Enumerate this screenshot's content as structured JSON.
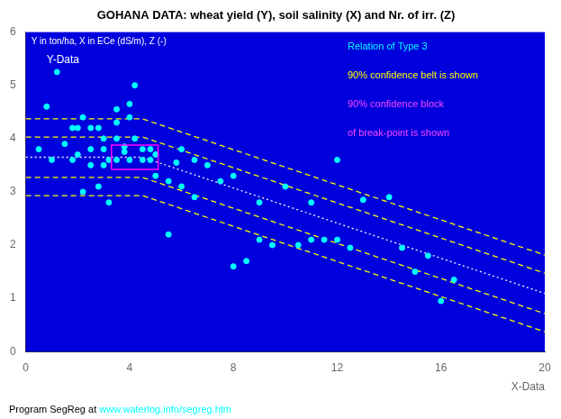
{
  "chart_data": {
    "type": "scatter",
    "title": "GOHANA DATA: wheat yield (Y), soil salinity (X) and Nr. of irr. (Z)",
    "subtitle": "Y in ton/ha, X in ECe (dS/m), Z (-)",
    "xlabel": "X-Data",
    "ylabel": "Y-Data",
    "annotations": [
      {
        "text": "Relation of Type 3",
        "color": "cyan"
      },
      {
        "text": "90% confidence belt is shown",
        "color": "#FFFF00"
      },
      {
        "text": "90% confidence block",
        "color": "#FF44FF"
      },
      {
        "text": "of break-point is shown",
        "color": "#FF44FF"
      }
    ],
    "footer": [
      {
        "text": "Program SegReg at",
        "color": "black"
      },
      {
        "text": "www.waterlog.info/segreg.htm",
        "color": "cyan"
      }
    ],
    "xlim": [
      0,
      20
    ],
    "ylim": [
      0,
      6
    ],
    "xticks": [
      0,
      4,
      8,
      12,
      16,
      20
    ],
    "yticks": [
      0,
      1,
      2,
      3,
      4,
      5,
      6
    ],
    "grid": false,
    "series": [
      {
        "type": "scatter",
        "color": "cyan",
        "marker": "circle",
        "x": [
          0.5,
          0.8,
          1.0,
          1.2,
          1.5,
          1.8,
          1.8,
          2.0,
          2.0,
          2.2,
          2.2,
          2.5,
          2.5,
          2.5,
          2.8,
          2.8,
          3.0,
          3.0,
          3.0,
          3.2,
          3.2,
          3.5,
          3.5,
          3.5,
          3.5,
          3.8,
          3.8,
          4.0,
          4.0,
          4.0,
          4.2,
          4.2,
          4.5,
          4.5,
          4.8,
          4.8,
          5.0,
          5.0,
          5.5,
          5.5,
          5.8,
          6.0,
          6.0,
          6.5,
          6.5,
          7.0,
          7.5,
          8.0,
          8.0,
          8.5,
          9.0,
          9.0,
          9.5,
          10.0,
          10.5,
          11.0,
          11.0,
          11.5,
          12.0,
          12.0,
          12.5,
          13.0,
          14.0,
          14.5,
          15.0,
          15.5,
          16.0,
          16.5
        ],
        "values": [
          3.8,
          4.6,
          3.6,
          5.25,
          3.9,
          4.2,
          3.6,
          4.2,
          3.7,
          3.0,
          4.4,
          3.8,
          3.5,
          4.2,
          4.2,
          3.1,
          3.8,
          4.0,
          3.5,
          3.6,
          2.8,
          4.55,
          4.0,
          3.6,
          4.3,
          3.85,
          3.75,
          3.6,
          4.4,
          4.65,
          4.0,
          5.0,
          3.6,
          3.8,
          3.6,
          3.8,
          3.7,
          3.3,
          3.2,
          2.2,
          3.55,
          3.8,
          3.1,
          2.9,
          3.6,
          3.5,
          3.2,
          3.3,
          1.6,
          1.7,
          2.1,
          2.8,
          2.0,
          3.1,
          2.0,
          2.8,
          2.1,
          2.1,
          3.6,
          2.1,
          1.95,
          2.85,
          2.9,
          1.95,
          1.5,
          1.8,
          0.95,
          1.35
        ]
      },
      {
        "type": "line",
        "color": "white",
        "line_style": "dotted",
        "x": [
          0,
          4.5,
          20
        ],
        "values": [
          3.65,
          3.65,
          1.0925
        ]
      },
      {
        "type": "line",
        "color": "yellow",
        "line_style": "dashed",
        "x": [
          0,
          4.5,
          20
        ],
        "values": [
          4.03,
          4.03,
          1.4725
        ]
      },
      {
        "type": "line",
        "color": "yellow",
        "line_style": "dashed",
        "x": [
          0,
          4.5,
          20
        ],
        "values": [
          3.27,
          3.27,
          0.7125
        ]
      },
      {
        "type": "line",
        "color": "yellow",
        "line_style": "dashed",
        "x": [
          0,
          4.5,
          20
        ],
        "values": [
          4.37,
          4.37,
          1.8125
        ]
      },
      {
        "type": "line",
        "color": "yellow",
        "line_style": "dashed",
        "x": [
          0,
          4.5,
          20
        ],
        "values": [
          2.93,
          2.93,
          0.3725
        ]
      }
    ],
    "conf_block": {
      "x": [
        3.3,
        5.1
      ],
      "y": [
        3.42,
        3.88
      ],
      "color": "magenta"
    }
  }
}
